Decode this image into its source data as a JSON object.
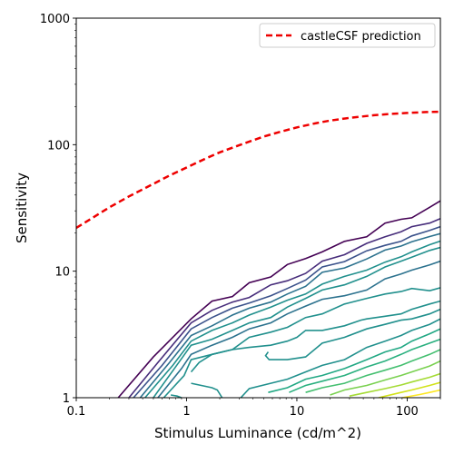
{
  "chart_data": {
    "type": "line",
    "title": "",
    "xlabel": "Stimulus Luminance (cd/m^2)",
    "ylabel": "Sensitivity",
    "xscale": "log",
    "yscale": "log",
    "xlim": [
      0.1,
      200
    ],
    "ylim": [
      1,
      1000
    ],
    "x_ticks": [
      {
        "value": 0.1,
        "label": "0.1"
      },
      {
        "value": 1,
        "label": "1"
      },
      {
        "value": 10,
        "label": "10"
      },
      {
        "value": 100,
        "label": "100"
      }
    ],
    "y_ticks": [
      {
        "value": 1,
        "label": "1"
      },
      {
        "value": 10,
        "label": "10"
      },
      {
        "value": 100,
        "label": "100"
      },
      {
        "value": 1000,
        "label": "1000"
      }
    ],
    "grid": false,
    "legend_position": "top-right",
    "legend": [
      {
        "label": "castleCSF prediction",
        "color": "#ee0000",
        "style": "dashed"
      }
    ],
    "prediction": {
      "name": "castleCSF prediction",
      "color": "#ee0000",
      "x": [
        0.1,
        0.2,
        0.3,
        0.5,
        0.7,
        1,
        1.5,
        2,
        3,
        5,
        7,
        10,
        15,
        20,
        30,
        50,
        70,
        100,
        150,
        200
      ],
      "y": [
        22,
        32,
        39,
        49,
        57,
        66,
        78,
        87,
        99,
        116,
        126,
        137,
        148,
        155,
        163,
        171,
        175,
        178,
        181,
        182
      ]
    },
    "contours": [
      {
        "color": "#440154",
        "x": [
          0.24,
          0.5,
          1.1,
          1.7,
          2.6,
          3.7,
          5.8,
          8.2,
          12,
          17,
          27,
          43,
          63,
          88,
          110,
          160,
          200
        ],
        "y": [
          1,
          2.1,
          4.2,
          5.8,
          6.3,
          8.1,
          9.0,
          11.3,
          12.6,
          14.2,
          17.2,
          18.7,
          24,
          25.7,
          26.4,
          32,
          36
        ]
      },
      {
        "color": "#472d7b",
        "x": [
          0.3,
          0.55,
          1.1,
          1.7,
          2.6,
          3.7,
          5.8,
          8.2,
          12,
          17,
          27,
          43,
          63,
          88,
          110,
          160,
          200
        ],
        "y": [
          1,
          1.9,
          3.9,
          4.9,
          5.7,
          6.2,
          7.8,
          8.4,
          9.6,
          12,
          13.5,
          16.6,
          18.7,
          20.5,
          22.5,
          24,
          26
        ]
      },
      {
        "color": "#3b528b",
        "x": [
          0.33,
          0.6,
          1.1,
          1.7,
          2.6,
          3.7,
          5.8,
          8.2,
          12,
          17,
          27,
          43,
          63,
          88,
          110,
          160,
          200
        ],
        "y": [
          1,
          1.8,
          3.5,
          4.3,
          5.1,
          5.6,
          6.4,
          7.3,
          8.5,
          10.8,
          11.9,
          14.5,
          16.0,
          17.2,
          19,
          21,
          22.5
        ]
      },
      {
        "color": "#2c728e",
        "x": [
          0.38,
          0.7,
          1.1,
          1.7,
          2.6,
          3.7,
          5.8,
          8.2,
          12,
          17,
          27,
          43,
          63,
          88,
          110,
          160,
          200
        ],
        "y": [
          1,
          1.9,
          3.1,
          3.7,
          4.5,
          5.1,
          5.7,
          6.6,
          7.6,
          9.8,
          10.6,
          12.5,
          14.7,
          15.8,
          17.1,
          18.8,
          19.8
        ]
      },
      {
        "color": "#21908d",
        "x": [
          0.42,
          0.75,
          1.1,
          1.7,
          2.6,
          3.7,
          5.8,
          8.2,
          12,
          17,
          27,
          43,
          63,
          88,
          110,
          160,
          200
        ],
        "y": [
          1,
          1.8,
          2.8,
          3.4,
          3.9,
          4.5,
          5.2,
          5.9,
          6.6,
          7.9,
          9.1,
          10.2,
          11.8,
          13.0,
          14.2,
          16.2,
          17.3
        ]
      },
      {
        "color": "#21908d",
        "x": [
          0.5,
          0.85,
          1.1,
          1.7,
          2.6,
          3.7,
          5.8,
          8.2,
          12,
          17,
          27,
          43,
          63,
          88,
          110,
          160,
          200
        ],
        "y": [
          1,
          1.9,
          2.6,
          2.9,
          3.4,
          3.9,
          4.3,
          5.2,
          6.1,
          7.1,
          7.8,
          9.1,
          10.8,
          12.0,
          12.9,
          14.6,
          15.4
        ]
      },
      {
        "color": "#2c728e",
        "x": [
          0.55,
          0.9,
          1.1,
          1.7,
          2.6,
          3.7,
          5.8,
          8.2,
          12,
          17,
          27,
          43,
          63,
          88,
          110,
          160,
          200
        ],
        "y": [
          1,
          1.7,
          2.2,
          2.6,
          3.0,
          3.5,
          3.9,
          4.6,
          5.3,
          6.0,
          6.4,
          7.1,
          8.7,
          9.5,
          10.2,
          11.2,
          12.0
        ]
      },
      {
        "color": "#21908d",
        "x": [
          0.62,
          0.95,
          1.1,
          1.7,
          2.6,
          3.7,
          5.8,
          8.2,
          12,
          17,
          27,
          43,
          63,
          88,
          110,
          160,
          200
        ],
        "y": [
          1,
          1.5,
          2.0,
          2.2,
          2.4,
          3.0,
          3.3,
          3.6,
          4.3,
          4.6,
          5.5,
          6.1,
          6.6,
          6.9,
          7.3,
          7.0,
          7.4
        ]
      },
      {
        "color": "#21908d",
        "x": [
          1.1,
          1.3,
          1.7,
          2.6,
          3.7,
          5.8,
          8.2,
          10,
          12,
          17,
          27,
          38,
          43,
          63,
          88,
          110,
          160,
          200
        ],
        "y": [
          1.6,
          1.9,
          2.2,
          2.4,
          2.5,
          2.6,
          2.8,
          3.0,
          3.4,
          3.4,
          3.7,
          4.1,
          4.2,
          4.4,
          4.6,
          5.0,
          5.5,
          5.8
        ]
      },
      {
        "color": "#21908d",
        "x": [
          5.5,
          5.2,
          5.6,
          8.2,
          12,
          17,
          27,
          43,
          63,
          88,
          110,
          160,
          200
        ],
        "y": [
          2.3,
          2.15,
          2.0,
          2.0,
          2.1,
          2.7,
          3.0,
          3.5,
          3.8,
          4.1,
          4.2,
          4.6,
          5.0
        ]
      },
      {
        "color": "#21908d",
        "x": [
          1.1,
          1.7,
          1.9,
          2.1
        ],
        "y": [
          1.3,
          1.2,
          1.15,
          1.0
        ]
      },
      {
        "color": "#21908d",
        "x": [
          0.72,
          0.82,
          0.9
        ],
        "y": [
          1.05,
          1.03,
          1.0
        ]
      },
      {
        "color": "#21908d",
        "x": [
          3.1,
          3.7,
          5.8,
          8.2,
          12,
          17,
          27,
          43,
          63,
          88,
          110,
          160,
          200
        ],
        "y": [
          1.0,
          1.18,
          1.3,
          1.4,
          1.6,
          1.8,
          2.0,
          2.5,
          2.8,
          3.1,
          3.4,
          3.8,
          4.2
        ]
      },
      {
        "color": "#22a884",
        "x": [
          5.5,
          8.2,
          12,
          17,
          27,
          43,
          63,
          88,
          110,
          160,
          200
        ],
        "y": [
          1.1,
          1.2,
          1.4,
          1.5,
          1.7,
          2.0,
          2.3,
          2.5,
          2.8,
          3.2,
          3.5
        ]
      },
      {
        "color": "#2ab07f",
        "x": [
          8.5,
          12,
          17,
          27,
          43,
          63,
          88,
          110,
          160,
          200
        ],
        "y": [
          1.1,
          1.25,
          1.35,
          1.5,
          1.75,
          1.95,
          2.2,
          2.4,
          2.7,
          2.9
        ]
      },
      {
        "color": "#44bf70",
        "x": [
          12,
          17,
          27,
          43,
          63,
          88,
          110,
          160,
          200
        ],
        "y": [
          1.1,
          1.2,
          1.3,
          1.5,
          1.65,
          1.8,
          1.95,
          2.2,
          2.4
        ]
      },
      {
        "color": "#7ad151",
        "x": [
          20,
          27,
          43,
          63,
          88,
          110,
          160,
          200
        ],
        "y": [
          1.05,
          1.15,
          1.25,
          1.38,
          1.5,
          1.6,
          1.78,
          1.95
        ]
      },
      {
        "color": "#a5db36",
        "x": [
          30,
          43,
          63,
          88,
          110,
          160,
          200
        ],
        "y": [
          1.03,
          1.1,
          1.18,
          1.26,
          1.33,
          1.45,
          1.55
        ]
      },
      {
        "color": "#d2e21b",
        "x": [
          55,
          88,
          110,
          160,
          200
        ],
        "y": [
          1.0,
          1.1,
          1.15,
          1.25,
          1.32
        ]
      },
      {
        "color": "#fde725",
        "x": [
          90,
          130,
          160,
          200
        ],
        "y": [
          1.0,
          1.06,
          1.1,
          1.15
        ]
      }
    ]
  }
}
